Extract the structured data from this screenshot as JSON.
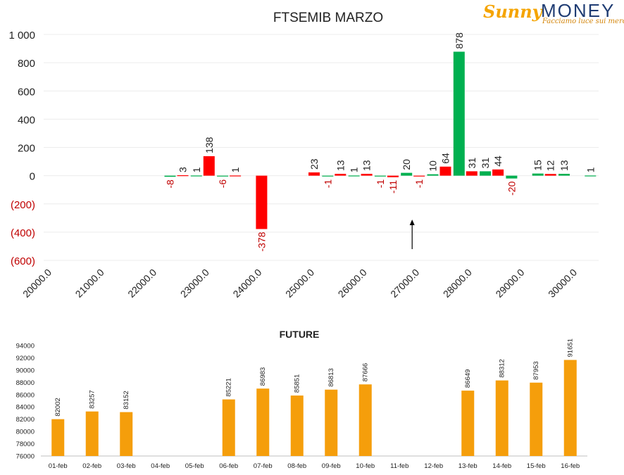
{
  "brand": {
    "sunny": "Sunny",
    "money": "MONEY",
    "tagline": "Facciamo luce sui mercati",
    "colors": {
      "sunny": "#f5a400",
      "money": "#1f3c73"
    }
  },
  "colors": {
    "positive": "#00b050",
    "negative": "#ff0000",
    "future": "#f59e0b",
    "negative_label": "#c00000"
  },
  "chart_data": [
    {
      "type": "bar",
      "title": "FTSEMIB MARZO",
      "xlabel": "",
      "ylabel": "",
      "ylim": [
        -600,
        1000
      ],
      "yticks": [
        {
          "value": 1000,
          "label": "1 000"
        },
        {
          "value": 800,
          "label": "800"
        },
        {
          "value": 600,
          "label": "600"
        },
        {
          "value": 400,
          "label": "400"
        },
        {
          "value": 200,
          "label": "200"
        },
        {
          "value": 0,
          "label": "0"
        },
        {
          "value": -200,
          "label": "(200)"
        },
        {
          "value": -400,
          "label": "(400)"
        },
        {
          "value": -600,
          "label": "(600)"
        }
      ],
      "xlim": [
        20000,
        30000
      ],
      "xticks": [
        {
          "value": 20000,
          "label": "20000.0"
        },
        {
          "value": 21000,
          "label": "21000.0"
        },
        {
          "value": 22000,
          "label": "22000.0"
        },
        {
          "value": 23000,
          "label": "23000.0"
        },
        {
          "value": 24000,
          "label": "24000.0"
        },
        {
          "value": 25000,
          "label": "25000.0"
        },
        {
          "value": 26000,
          "label": "26000.0"
        },
        {
          "value": 27000,
          "label": "27000.0"
        },
        {
          "value": 28000,
          "label": "28000.0"
        },
        {
          "value": 29000,
          "label": "29000.0"
        },
        {
          "value": 30000,
          "label": "30000.0"
        }
      ],
      "grid": true,
      "bars": [
        {
          "strike": 22500,
          "type": "call",
          "value": -8
        },
        {
          "strike": 22500,
          "type": "put",
          "value": 3
        },
        {
          "strike": 23000,
          "type": "call",
          "value": 1
        },
        {
          "strike": 23000,
          "type": "put",
          "value": 138
        },
        {
          "strike": 23500,
          "type": "call",
          "value": -6
        },
        {
          "strike": 23500,
          "type": "put",
          "value": 1
        },
        {
          "strike": 24000,
          "type": "put",
          "value": -378
        },
        {
          "strike": 25000,
          "type": "put",
          "value": 23
        },
        {
          "strike": 25500,
          "type": "call",
          "value": -1
        },
        {
          "strike": 25500,
          "type": "put",
          "value": 13
        },
        {
          "strike": 26000,
          "type": "call",
          "value": 1
        },
        {
          "strike": 26000,
          "type": "put",
          "value": 13
        },
        {
          "strike": 26500,
          "type": "call",
          "value": -1
        },
        {
          "strike": 26500,
          "type": "put",
          "value": -11
        },
        {
          "strike": 27000,
          "type": "call",
          "value": 20
        },
        {
          "strike": 27000,
          "type": "put",
          "value": -1
        },
        {
          "strike": 27500,
          "type": "call",
          "value": 10
        },
        {
          "strike": 27500,
          "type": "put",
          "value": 64
        },
        {
          "strike": 28000,
          "type": "call",
          "value": 878
        },
        {
          "strike": 28000,
          "type": "put",
          "value": 31
        },
        {
          "strike": 28500,
          "type": "call",
          "value": 31
        },
        {
          "strike": 28500,
          "type": "put",
          "value": 44
        },
        {
          "strike": 29000,
          "type": "call",
          "value": -20
        },
        {
          "strike": 29500,
          "type": "call",
          "value": 15
        },
        {
          "strike": 29500,
          "type": "put",
          "value": 12
        },
        {
          "strike": 30000,
          "type": "call",
          "value": 13
        },
        {
          "strike": 30500,
          "type": "call",
          "value": 1
        }
      ],
      "marker": {
        "x": 27000,
        "direction": "up"
      }
    },
    {
      "type": "bar",
      "title": "FUTURE",
      "xlabel": "",
      "ylabel": "",
      "ylim": [
        76000,
        94000
      ],
      "yticks": [
        76000,
        78000,
        80000,
        82000,
        84000,
        86000,
        88000,
        90000,
        92000,
        94000
      ],
      "categories": [
        "01-feb",
        "02-feb",
        "03-feb",
        "04-feb",
        "05-feb",
        "06-feb",
        "07-feb",
        "08-feb",
        "09-feb",
        "10-feb",
        "11-feb",
        "12-feb",
        "13-feb",
        "14-feb",
        "15-feb",
        "16-feb"
      ],
      "values": [
        82002,
        83257,
        83152,
        null,
        null,
        85221,
        86983,
        85851,
        86813,
        87666,
        null,
        null,
        86649,
        88312,
        87953,
        91651
      ],
      "grid": false
    }
  ]
}
